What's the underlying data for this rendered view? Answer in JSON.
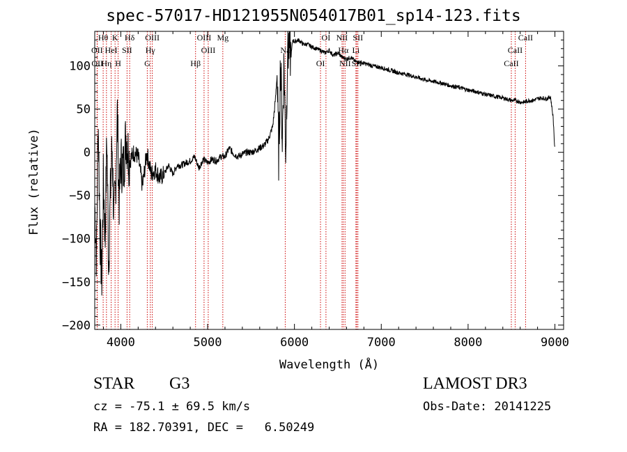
{
  "header": {
    "title": "spec-57017-HD121955N054017B01_sp14-123.fits"
  },
  "info": {
    "object_class": "STAR",
    "subclass": "G3",
    "survey": "LAMOST DR3",
    "cz_text": "cz = -75.1 ± 69.5 km/s",
    "obs_date_text": "Obs-Date: 20141225",
    "radec_text": "RA = 182.70391, DEC =   6.50249"
  },
  "colors": {
    "spectrum": "#000000",
    "line_marker": "#cc0000",
    "axis": "#000000"
  },
  "chart_data": {
    "type": "line",
    "title": "spec-57017-HD121955N054017B01_sp14-123.fits",
    "xlabel": "Wavelength (Å)",
    "ylabel": "Flux (relative)",
    "xlim": [
      3700,
      9100
    ],
    "ylim": [
      -205,
      140
    ],
    "x_ticks": [
      4000,
      5000,
      6000,
      7000,
      8000,
      9000
    ],
    "y_ticks": [
      -200,
      -150,
      -100,
      -50,
      0,
      50,
      100
    ],
    "x_tick_labels": [
      "4000",
      "5000",
      "6000",
      "7000",
      "8000",
      "9000"
    ],
    "y_tick_labels": [
      "−200",
      "−150",
      "−100",
      "−50",
      "0",
      "50",
      "100"
    ],
    "series": [
      {
        "name": "flux",
        "x": [
          3700,
          3720,
          3740,
          3760,
          3780,
          3800,
          3820,
          3840,
          3860,
          3880,
          3900,
          3920,
          3940,
          3960,
          3980,
          4000,
          4030,
          4060,
          4100,
          4150,
          4200,
          4250,
          4300,
          4350,
          4400,
          4450,
          4500,
          4550,
          4600,
          4650,
          4700,
          4750,
          4800,
          4850,
          4900,
          4950,
          5000,
          5050,
          5100,
          5150,
          5200,
          5250,
          5300,
          5350,
          5400,
          5450,
          5500,
          5550,
          5600,
          5650,
          5700,
          5750,
          5780,
          5800,
          5820,
          5840,
          5860,
          5880,
          5900,
          5920,
          5940,
          5960,
          5980,
          6000,
          6050,
          6100,
          6150,
          6200,
          6250,
          6300,
          6350,
          6400,
          6450,
          6500,
          6550,
          6600,
          6650,
          6700,
          6750,
          6800,
          6900,
          7000,
          7100,
          7200,
          7300,
          7400,
          7500,
          7600,
          7700,
          7800,
          7900,
          8000,
          8100,
          8200,
          8300,
          8400,
          8500,
          8550,
          8600,
          8650,
          8700,
          8750,
          8800,
          8850,
          8900,
          8950,
          8980,
          9000
        ],
        "values": [
          -60,
          -120,
          40,
          -90,
          -150,
          -30,
          -100,
          20,
          -130,
          -50,
          10,
          -80,
          -40,
          50,
          -60,
          -10,
          -20,
          20,
          -10,
          0,
          -5,
          -40,
          0,
          -25,
          -20,
          -30,
          -25,
          -15,
          -25,
          -15,
          -15,
          -12,
          -10,
          -5,
          -18,
          -8,
          -12,
          -8,
          -10,
          -5,
          -5,
          5,
          -2,
          -5,
          -2,
          0,
          0,
          2,
          5,
          8,
          15,
          30,
          60,
          90,
          -10,
          110,
          15,
          105,
          0,
          115,
          125,
          110,
          130,
          128,
          130,
          125,
          125,
          122,
          120,
          118,
          115,
          118,
          112,
          115,
          110,
          108,
          110,
          105,
          104,
          103,
          100,
          98,
          95,
          92,
          90,
          87,
          84,
          82,
          80,
          77,
          75,
          72,
          70,
          67,
          65,
          63,
          60,
          60,
          58,
          58,
          60,
          60,
          62,
          63,
          62,
          64,
          40,
          0
        ]
      }
    ],
    "line_markers": [
      {
        "label": "Hθ",
        "wavelength": 3797
      },
      {
        "label": "OII",
        "wavelength": 3727
      },
      {
        "label": "OII",
        "wavelength": 3730
      },
      {
        "label": "K",
        "wavelength": 3934
      },
      {
        "label": "HeI",
        "wavelength": 3889
      },
      {
        "label": "Hη",
        "wavelength": 3835
      },
      {
        "label": "Hδ",
        "wavelength": 4102
      },
      {
        "label": "SII",
        "wavelength": 4072
      },
      {
        "label": "H",
        "wavelength": 3969
      },
      {
        "label": "OIII",
        "wavelength": 4363
      },
      {
        "label": "Hγ",
        "wavelength": 4340
      },
      {
        "label": "G",
        "wavelength": 4305
      },
      {
        "label": "OIII",
        "wavelength": 4959
      },
      {
        "label": "OIII",
        "wavelength": 5007
      },
      {
        "label": "Hβ",
        "wavelength": 4861
      },
      {
        "label": "Mg",
        "wavelength": 5175
      },
      {
        "label": "Na",
        "wavelength": 5894
      },
      {
        "label": "OI",
        "wavelength": 6300
      },
      {
        "label": "OI",
        "wavelength": 6363
      },
      {
        "label": "Hα",
        "wavelength": 6563
      },
      {
        "label": "SII",
        "wavelength": 6717
      },
      {
        "label": "NII",
        "wavelength": 6548
      },
      {
        "label": "Li",
        "wavelength": 6708
      },
      {
        "label": "NII",
        "wavelength": 6583
      },
      {
        "label": "SII",
        "wavelength": 6731
      },
      {
        "label": "CaII",
        "wavelength": 8542
      },
      {
        "label": "CaII",
        "wavelength": 8498
      },
      {
        "label": "CaII",
        "wavelength": 8662
      }
    ]
  }
}
